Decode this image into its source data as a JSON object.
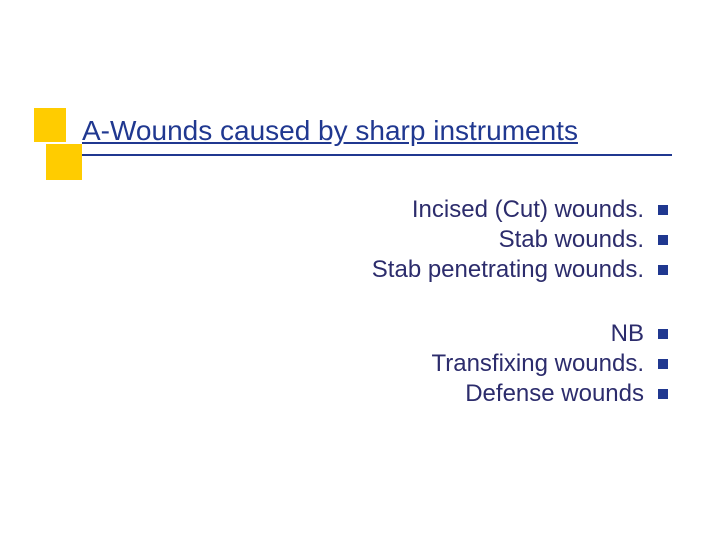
{
  "colors": {
    "accent": "#ffcc00",
    "title": "#203890",
    "body": "#2c2c6c",
    "bullet": "#203890",
    "underline": "#203890"
  },
  "title": "A-Wounds caused by sharp instruments",
  "group1": [
    "Incised (Cut) wounds.",
    "Stab wounds.",
    "Stab penetrating wounds."
  ],
  "group2": [
    "NB",
    "Transfixing  wounds.",
    "Defense wounds"
  ]
}
